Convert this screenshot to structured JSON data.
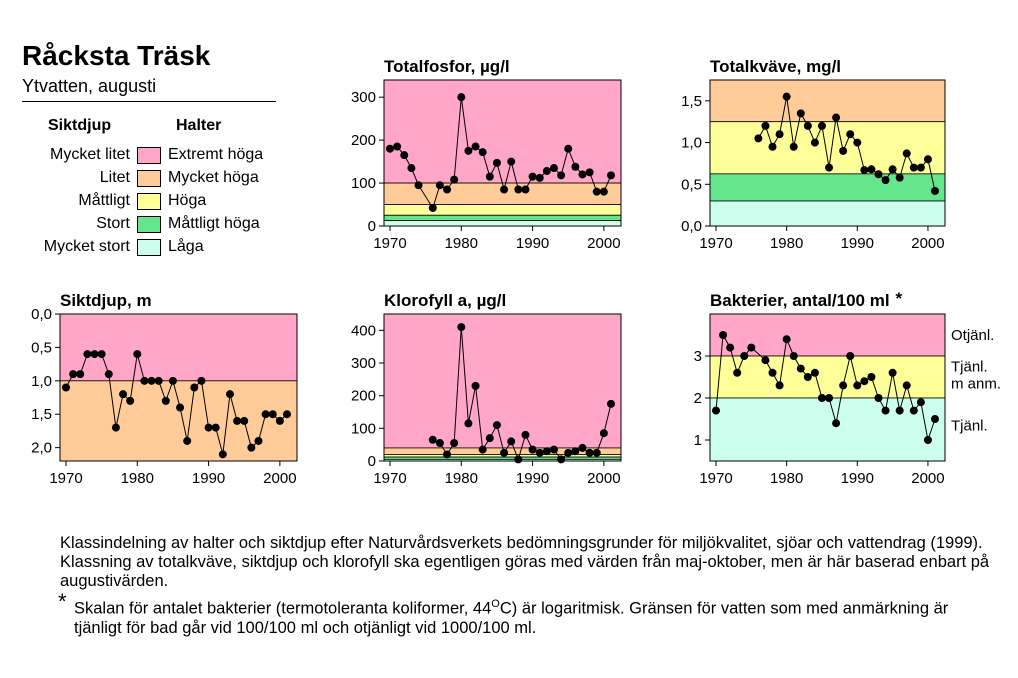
{
  "header": {
    "title": "Råcksta Träsk",
    "subtitle": "Ytvatten, augusti"
  },
  "legend": {
    "siktdjup_heading": "Siktdjup",
    "halter_heading": "Halter",
    "rows": [
      {
        "siktdjup": "Mycket litet",
        "halter": "Extremt höga",
        "color": "#ffa6c9"
      },
      {
        "siktdjup": "Litet",
        "halter": "Mycket höga",
        "color": "#ffcc99"
      },
      {
        "siktdjup": "Måttligt",
        "halter": "Höga",
        "color": "#ffff99"
      },
      {
        "siktdjup": "Stort",
        "halter": "Måttligt höga",
        "color": "#66e68c"
      },
      {
        "siktdjup": "Mycket stort",
        "halter": "Låga",
        "color": "#ccffee"
      }
    ]
  },
  "chart_data": [
    {
      "id": "totalfosfor",
      "type": "line",
      "title": "Totalfosfor, µg/l",
      "xlim": [
        1970,
        2000
      ],
      "ylim": [
        0,
        340
      ],
      "xticks": [
        1970,
        1980,
        1990,
        2000
      ],
      "yticks": [
        0,
        100,
        200,
        300
      ],
      "ytick_labels": [
        "0",
        "100",
        "200",
        "300"
      ],
      "bands": [
        {
          "from": 100,
          "to": 340,
          "color": "#ffa6c9"
        },
        {
          "from": 50,
          "to": 100,
          "color": "#ffcc99"
        },
        {
          "from": 25,
          "to": 50,
          "color": "#ffff99"
        },
        {
          "from": 12.5,
          "to": 25,
          "color": "#66e68c"
        },
        {
          "from": 0,
          "to": 12.5,
          "color": "#ccffee"
        }
      ],
      "x": [
        1970,
        1971,
        1972,
        1973,
        1974,
        1976,
        1977,
        1978,
        1979,
        1980,
        1981,
        1982,
        1983,
        1984,
        1985,
        1986,
        1987,
        1988,
        1989,
        1990,
        1991,
        1992,
        1993,
        1994,
        1995,
        1996,
        1997,
        1998,
        1999,
        2000,
        2001
      ],
      "y": [
        180,
        185,
        165,
        135,
        95,
        42,
        95,
        85,
        108,
        300,
        175,
        185,
        172,
        115,
        147,
        85,
        150,
        85,
        85,
        115,
        112,
        128,
        135,
        118,
        180,
        138,
        120,
        125,
        80,
        80,
        118
      ]
    },
    {
      "id": "totalkvave",
      "type": "line",
      "title": "Totalkväve, mg/l",
      "xlim": [
        1970,
        2000
      ],
      "ylim": [
        0,
        1.75
      ],
      "xticks": [
        1970,
        1980,
        1990,
        2000
      ],
      "yticks": [
        0,
        0.5,
        1.0,
        1.5
      ],
      "ytick_labels": [
        "0,0",
        "0,5",
        "1,0",
        "1,5"
      ],
      "bands": [
        {
          "from": 1.25,
          "to": 1.75,
          "color": "#ffcc99"
        },
        {
          "from": 0.625,
          "to": 1.25,
          "color": "#ffff99"
        },
        {
          "from": 0.3,
          "to": 0.625,
          "color": "#66e68c"
        },
        {
          "from": 0,
          "to": 0.3,
          "color": "#ccffee"
        }
      ],
      "x": [
        1976,
        1977,
        1978,
        1979,
        1980,
        1981,
        1982,
        1983,
        1984,
        1985,
        1986,
        1987,
        1988,
        1989,
        1990,
        1991,
        1992,
        1993,
        1994,
        1995,
        1996,
        1997,
        1998,
        1999,
        2000,
        2001
      ],
      "y": [
        1.05,
        1.2,
        0.95,
        1.1,
        1.55,
        0.95,
        1.35,
        1.2,
        1.0,
        1.2,
        0.7,
        1.3,
        0.9,
        1.1,
        1.0,
        0.67,
        0.68,
        0.62,
        0.55,
        0.68,
        0.58,
        0.87,
        0.7,
        0.7,
        0.8,
        0.42
      ]
    },
    {
      "id": "siktdjup",
      "type": "line",
      "title": "Siktdjup, m",
      "xlim": [
        1970,
        2000
      ],
      "ylim": [
        0,
        2.2
      ],
      "y_inverted": true,
      "xticks": [
        1970,
        1980,
        1990,
        2000
      ],
      "yticks": [
        0,
        0.5,
        1.0,
        1.5,
        2.0
      ],
      "ytick_labels": [
        "0,0",
        "0,5",
        "1,0",
        "1,5",
        "2,0"
      ],
      "bands": [
        {
          "from": 0,
          "to": 1.0,
          "color": "#ffa6c9"
        },
        {
          "from": 1.0,
          "to": 2.2,
          "color": "#ffcc99"
        }
      ],
      "x": [
        1970,
        1971,
        1972,
        1973,
        1974,
        1975,
        1976,
        1977,
        1978,
        1979,
        1980,
        1981,
        1982,
        1983,
        1984,
        1985,
        1986,
        1987,
        1988,
        1989,
        1990,
        1991,
        1992,
        1993,
        1994,
        1995,
        1996,
        1997,
        1998,
        1999,
        2000,
        2001
      ],
      "y": [
        1.1,
        0.9,
        0.9,
        0.6,
        0.6,
        0.6,
        0.9,
        1.7,
        1.2,
        1.3,
        0.6,
        1.0,
        1.0,
        1.0,
        1.3,
        1.0,
        1.4,
        1.9,
        1.1,
        1.0,
        1.7,
        1.7,
        2.1,
        1.2,
        1.6,
        1.6,
        2.0,
        1.9,
        1.5,
        1.5,
        1.6,
        1.5
      ]
    },
    {
      "id": "klorofyll",
      "type": "line",
      "title": "Klorofyll a, µg/l",
      "xlim": [
        1970,
        2000
      ],
      "ylim": [
        0,
        450
      ],
      "xticks": [
        1970,
        1980,
        1990,
        2000
      ],
      "yticks": [
        0,
        100,
        200,
        300,
        400
      ],
      "ytick_labels": [
        "0",
        "100",
        "200",
        "300",
        "400"
      ],
      "bands": [
        {
          "from": 40,
          "to": 450,
          "color": "#ffa6c9"
        },
        {
          "from": 20,
          "to": 40,
          "color": "#ffcc99"
        },
        {
          "from": 12,
          "to": 20,
          "color": "#ffff99"
        },
        {
          "from": 5,
          "to": 12,
          "color": "#66e68c"
        },
        {
          "from": 0,
          "to": 5,
          "color": "#ccffee"
        }
      ],
      "x": [
        1976,
        1977,
        1978,
        1979,
        1980,
        1981,
        1982,
        1983,
        1984,
        1985,
        1986,
        1987,
        1988,
        1989,
        1990,
        1991,
        1992,
        1993,
        1994,
        1995,
        1996,
        1997,
        1998,
        1999,
        2000,
        2001
      ],
      "y": [
        65,
        55,
        20,
        55,
        410,
        115,
        230,
        35,
        70,
        110,
        25,
        60,
        5,
        80,
        35,
        25,
        30,
        35,
        5,
        25,
        30,
        40,
        25,
        25,
        85,
        175
      ]
    },
    {
      "id": "bakterier",
      "type": "line",
      "title": "Bakterier, antal/100 ml",
      "title_mark": "*",
      "xlim": [
        1970,
        2000
      ],
      "ylim": [
        0.5,
        4.0
      ],
      "xticks": [
        1970,
        1980,
        1990,
        2000
      ],
      "yticks": [
        1,
        2,
        3
      ],
      "ytick_labels": [
        "1",
        "2",
        "3"
      ],
      "bands": [
        {
          "from": 3.0,
          "to": 4.0,
          "color": "#ffa6c9"
        },
        {
          "from": 2.0,
          "to": 3.0,
          "color": "#ffff99"
        },
        {
          "from": 0.5,
          "to": 2.0,
          "color": "#ccffee"
        }
      ],
      "annotations": [
        {
          "text": "Otjänl.",
          "y": 3.5
        },
        {
          "text": "Tjänl.",
          "y": 2.75
        },
        {
          "text": "m anm.",
          "y": 2.35
        },
        {
          "text": "Tjänl.",
          "y": 1.35
        }
      ],
      "x": [
        1970,
        1971,
        1972,
        1973,
        1974,
        1975,
        1977,
        1978,
        1979,
        1980,
        1981,
        1982,
        1983,
        1984,
        1985,
        1986,
        1987,
        1988,
        1989,
        1990,
        1991,
        1992,
        1993,
        1994,
        1995,
        1996,
        1997,
        1998,
        1999,
        2000,
        2001
      ],
      "y": [
        1.7,
        3.5,
        3.2,
        2.6,
        3.0,
        3.2,
        2.9,
        2.6,
        2.3,
        3.4,
        3.0,
        2.7,
        2.5,
        2.6,
        2.0,
        2.0,
        1.4,
        2.3,
        3.0,
        2.3,
        2.4,
        2.5,
        2.0,
        1.7,
        2.6,
        1.7,
        2.3,
        1.7,
        1.9,
        1.0,
        1.5
      ]
    }
  ],
  "notes": {
    "main": "Klassindelning av halter och siktdjup efter Naturvårdsverkets bedömningsgrunder för miljökvalitet, sjöar och vattendrag (1999). Klassning av totalkväve, siktdjup och klorofyll ska egentligen göras med värden från maj-oktober, men är här baserad enbart på augustivärden.",
    "star_mark": "*",
    "star_pre": "Skalan för antalet bakterier (termotoleranta koliformer, 44",
    "star_sup": "O",
    "star_post": "C) är logaritmisk. Gränsen för vatten som med anmärkning är tjänligt för bad går vid 100/100 ml och otjänligt vid 1000/100 ml."
  }
}
